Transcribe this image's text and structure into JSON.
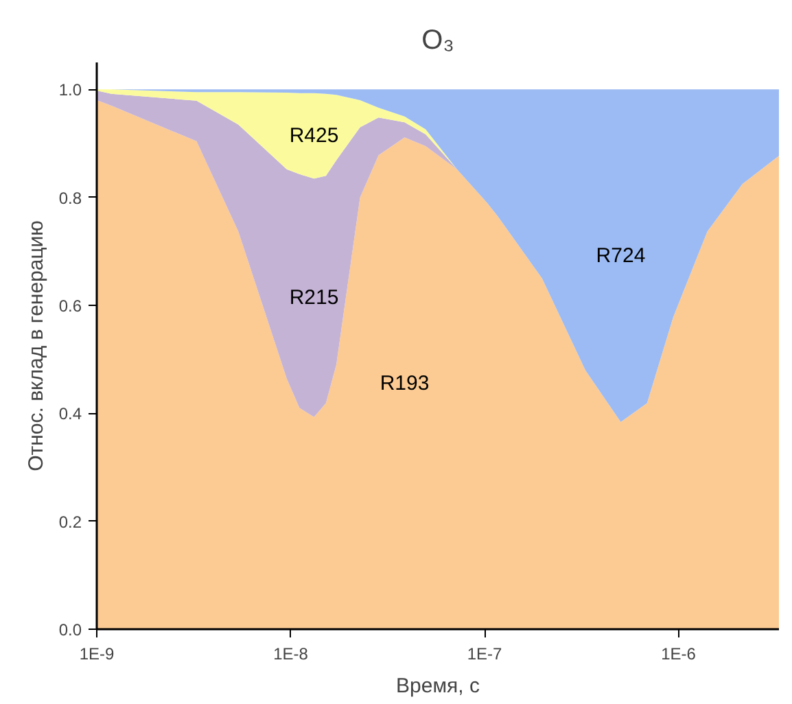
{
  "chart_data": {
    "type": "area",
    "stacked": true,
    "title": "O₃",
    "xlabel": "Время, с",
    "ylabel": "Относ. вклад в генерацию",
    "log": "x",
    "grid": false,
    "x": [
      1e-09,
      1.19e-09,
      3.27e-09,
      5.37e-09,
      9.55e-09,
      1.11e-08,
      1.32e-08,
      1.52e-08,
      1.72e-08,
      2.28e-08,
      2.84e-08,
      3.87e-08,
      4.97e-08,
      7.21e-08,
      1.03e-07,
      1.17e-07,
      1.98e-07,
      3.31e-07,
      5.04e-07,
      6.89e-07,
      9.4e-07,
      1.41e-06,
      2.14e-06,
      3.3e-06
    ],
    "xlim": [
      1e-09,
      3.3e-06
    ],
    "xticks": [
      {
        "value": 1e-09,
        "label": "1E-9"
      },
      {
        "value": 1e-08,
        "label": "1E-8"
      },
      {
        "value": 1e-07,
        "label": "1E-7"
      },
      {
        "value": 1e-06,
        "label": "1E-6"
      }
    ],
    "ylim": [
      0,
      1.05
    ],
    "yticks": [
      {
        "value": 0,
        "label": "0.0"
      },
      {
        "value": 0.2,
        "label": "0.2"
      },
      {
        "value": 0.4,
        "label": "0.4"
      },
      {
        "value": 0.6,
        "label": "0.6"
      },
      {
        "value": 0.8,
        "label": "0.8"
      },
      {
        "value": 1,
        "label": "1.0"
      }
    ],
    "series": [
      {
        "name": "R193",
        "color": "#fccb93",
        "values": [
          0.98,
          0.97,
          0.904,
          0.737,
          0.464,
          0.41,
          0.393,
          0.419,
          0.49,
          0.8,
          0.878,
          0.911,
          0.895,
          0.852,
          0.79,
          0.765,
          0.65,
          0.48,
          0.384,
          0.419,
          0.578,
          0.737,
          0.825,
          0.877
        ]
      },
      {
        "name": "R215",
        "color": "#c5b3d6",
        "values": [
          0.018,
          0.022,
          0.075,
          0.198,
          0.388,
          0.433,
          0.442,
          0.421,
          0.379,
          0.13,
          0.07,
          0.028,
          0.022,
          0,
          null,
          null,
          null,
          null,
          null,
          null,
          null,
          null,
          null,
          null
        ]
      },
      {
        "name": "R425",
        "color": "#fbfb9e",
        "values": [
          0.002,
          0.008,
          0.016,
          0.06,
          0.142,
          0.15,
          0.158,
          0.152,
          0.121,
          0.05,
          0.018,
          0.011,
          0.009,
          0,
          null,
          null,
          null,
          null,
          null,
          null,
          null,
          null,
          null,
          null
        ]
      },
      {
        "name": "R724",
        "color": "#9cbbf4",
        "values": [
          null,
          0,
          0.005,
          0.005,
          0.006,
          0.007,
          0.007,
          0.008,
          0.01,
          0.02,
          0.034,
          0.05,
          0.074,
          0.148,
          0.21,
          0.235,
          0.35,
          0.52,
          0.616,
          0.581,
          0.422,
          0.263,
          0.175,
          0.123
        ]
      }
    ]
  }
}
